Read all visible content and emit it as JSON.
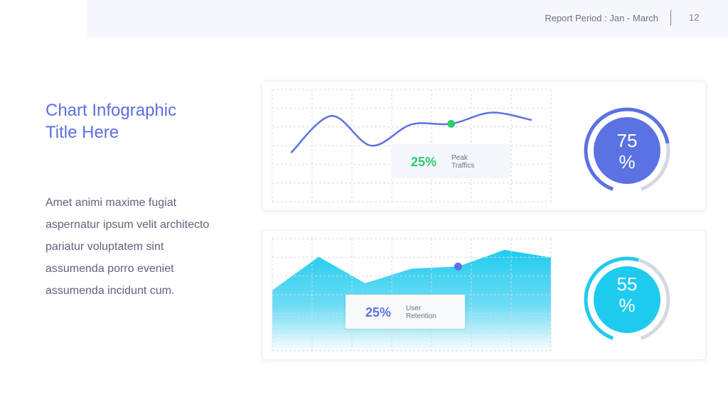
{
  "header": {
    "report_period": "Report Period : Jan - March",
    "page_number": "12"
  },
  "title": "Chart Infographic Title Here",
  "body": "Amet animi maxime fugiat aspernatur ipsum velit architecto pariatur voluptatem sint assumenda porro eveniet assumenda incidunt cum.",
  "colors": {
    "accent_blue": "#5b72e3",
    "accent_cyan": "#1ecbef",
    "accent_green": "#2ecc71",
    "track_gray": "#d3d8e2"
  },
  "card1": {
    "callout": {
      "value": "25%",
      "label_line1": "Peak",
      "label_line2": "Traffics"
    },
    "ring": {
      "value_text": "75",
      "unit": "%",
      "progress": 0.75
    }
  },
  "card2": {
    "callout": {
      "value": "25%",
      "label_line1": "User",
      "label_line2": "Retention"
    },
    "ring": {
      "value_text": "55",
      "unit": "%",
      "progress": 0.55
    }
  },
  "chart_data": [
    {
      "type": "line",
      "x": [
        0,
        1,
        2,
        3,
        4,
        5,
        6
      ],
      "series": [
        {
          "values": [
            20,
            75,
            30,
            62,
            63,
            80,
            69
          ]
        }
      ],
      "highlight_point": {
        "x": 4,
        "y": 63
      },
      "ylim": [
        0,
        100
      ],
      "grid": true,
      "annotation": "25% Peak Traffics"
    },
    {
      "type": "area",
      "x": [
        0,
        1,
        2,
        3,
        4,
        5,
        6
      ],
      "series": [
        {
          "values": [
            35,
            83,
            45,
            66,
            69,
            93,
            82
          ]
        }
      ],
      "highlight_point": {
        "x": 4,
        "y": 69
      },
      "ylim": [
        0,
        100
      ],
      "grid": true,
      "annotation": "25% User Retention"
    }
  ]
}
